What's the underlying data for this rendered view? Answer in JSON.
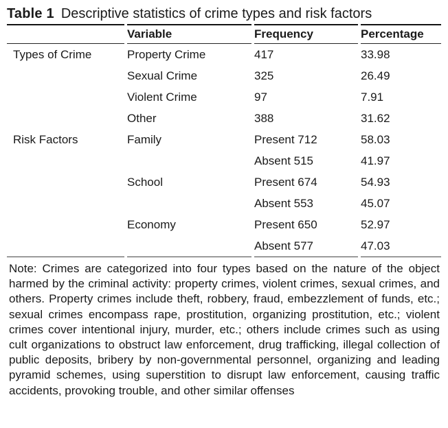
{
  "caption": {
    "label": "Table 1",
    "text": "Descriptive statistics of crime types and risk factors"
  },
  "table": {
    "headers": {
      "group": "",
      "variable": "Variable",
      "frequency": "Frequency",
      "percentage": "Percentage"
    },
    "rows": [
      {
        "group": "Types of Crime",
        "variable": "Property Crime",
        "frequency": "417",
        "percentage": "33.98"
      },
      {
        "group": "",
        "variable": "Sexual Crime",
        "frequency": "325",
        "percentage": "26.49"
      },
      {
        "group": "",
        "variable": "Violent Crime",
        "frequency": "97",
        "percentage": "7.91"
      },
      {
        "group": "",
        "variable": "Other",
        "frequency": "388",
        "percentage": "31.62"
      },
      {
        "group": "Risk Factors",
        "variable": "Family",
        "frequency": "Present 712",
        "percentage": "58.03"
      },
      {
        "group": "",
        "variable": "",
        "frequency": "Absent 515",
        "percentage": "41.97"
      },
      {
        "group": "",
        "variable": "School",
        "frequency": "Present 674",
        "percentage": "54.93"
      },
      {
        "group": "",
        "variable": "",
        "frequency": "Absent 553",
        "percentage": "45.07"
      },
      {
        "group": "",
        "variable": "Economy",
        "frequency": "Present 650",
        "percentage": "52.97"
      },
      {
        "group": "",
        "variable": "",
        "frequency": "Absent 577",
        "percentage": "47.03"
      }
    ]
  },
  "note": "Note: Crimes are categorized into four types based on the nature of the object harmed by the criminal activity: property crimes, violent crimes, sexual crimes, and others. Property crimes include theft, robbery, fraud, embezzlement of funds, etc.; sexual crimes encompass rape, prostitution, organizing prostitution, etc.; violent crimes cover intentional injury, murder, etc.; others include crimes such as using cult organizations to obstruct law enforcement, drug trafficking, illegal collection of public deposits, bribery by non-governmental personnel, organizing and leading pyramid schemes, using superstition to disrupt law enforcement, causing traffic accidents, provoking trouble, and other similar offenses",
  "colors": {
    "text": "#1a1a1a",
    "rule_heavy": "#111111",
    "rule_light": "#444444",
    "background": "#ffffff"
  }
}
